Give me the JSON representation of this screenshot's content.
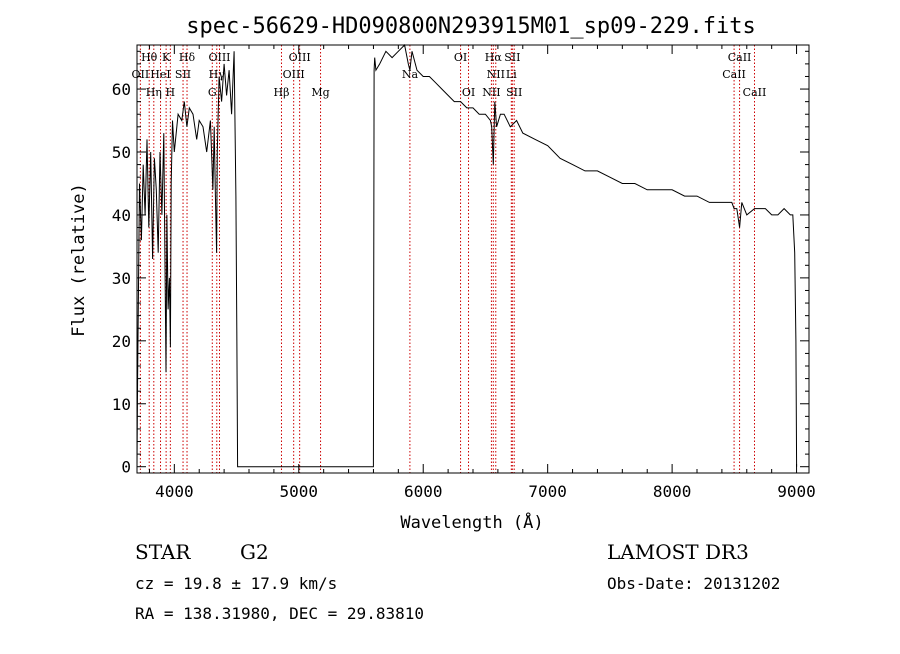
{
  "chart_data": {
    "type": "line",
    "title": "spec-56629-HD090800N293915M01_sp09-229.fits",
    "xlabel": "Wavelength (Å)",
    "ylabel": "Flux (relative)",
    "xlim": [
      3700,
      9100
    ],
    "ylim": [
      -1,
      67
    ],
    "xticks": [
      4000,
      5000,
      6000,
      7000,
      8000,
      9000
    ],
    "xtick_labels": [
      "4000",
      "5000",
      "6000",
      "7000",
      "8000",
      "9000"
    ],
    "yticks": [
      0,
      10,
      20,
      30,
      40,
      50,
      60
    ],
    "ytick_labels": [
      "0",
      "10",
      "20",
      "30",
      "40",
      "50",
      "60"
    ],
    "minor_xtick_step": 200,
    "minor_ytick_step": 2,
    "grid": false,
    "line_color": "#000000",
    "marker_color": "#cc0000",
    "series": [
      {
        "name": "spectrum",
        "x": [
          3700,
          3705,
          3720,
          3735,
          3750,
          3765,
          3780,
          3795,
          3810,
          3825,
          3840,
          3855,
          3870,
          3885,
          3900,
          3915,
          3925,
          3933,
          3940,
          3950,
          3960,
          3968,
          3975,
          3985,
          4000,
          4030,
          4060,
          4080,
          4101,
          4120,
          4150,
          4180,
          4200,
          4230,
          4260,
          4290,
          4310,
          4320,
          4330,
          4340,
          4345,
          4360,
          4380,
          4400,
          4420,
          4440,
          4460,
          4480,
          4495,
          4502,
          4508,
          4515,
          4520,
          5600,
          5605,
          5610,
          5620,
          5650,
          5700,
          5750,
          5800,
          5850,
          5880,
          5893,
          5910,
          5950,
          6000,
          6050,
          6100,
          6150,
          6200,
          6250,
          6300,
          6350,
          6400,
          6450,
          6500,
          6540,
          6550,
          6563,
          6575,
          6590,
          6620,
          6650,
          6700,
          6750,
          6800,
          6900,
          7000,
          7100,
          7200,
          7300,
          7400,
          7500,
          7600,
          7700,
          7800,
          7900,
          8000,
          8100,
          8200,
          8300,
          8400,
          8480,
          8498,
          8520,
          8542,
          8560,
          8600,
          8662,
          8700,
          8750,
          8800,
          8850,
          8900,
          8950,
          8970,
          8985,
          8995,
          9000
        ],
        "y": [
          0,
          14,
          45,
          36,
          48,
          40,
          52,
          38,
          50,
          33,
          49,
          44,
          34,
          50,
          40,
          53,
          32,
          15,
          40,
          25,
          30,
          19,
          45,
          55,
          50,
          56,
          55,
          58,
          54,
          57,
          56,
          52,
          55,
          54,
          50,
          55,
          44,
          54,
          43,
          34,
          50,
          62,
          58,
          64,
          59,
          63,
          56,
          66,
          43,
          22,
          0,
          0,
          0,
          0,
          63,
          65,
          63,
          64,
          66,
          65,
          66,
          67,
          64,
          63,
          66,
          63,
          62,
          62,
          61,
          60,
          59,
          58,
          58,
          57,
          57,
          56,
          56,
          55,
          54,
          48,
          58,
          54,
          56,
          56,
          54,
          55,
          53,
          52,
          51,
          49,
          48,
          47,
          47,
          46,
          45,
          45,
          44,
          44,
          44,
          43,
          43,
          42,
          42,
          42,
          41,
          41,
          38,
          42,
          40,
          41,
          41,
          41,
          40,
          40,
          41,
          40,
          40,
          34,
          20,
          0
        ]
      }
    ],
    "line_markers": [
      {
        "label": "Hθ",
        "wavelength": 3798,
        "row": 0,
        "dx": 0
      },
      {
        "label": "K",
        "wavelength": 3934,
        "row": 0,
        "dx": 0
      },
      {
        "label": "Hδ",
        "wavelength": 4102,
        "row": 0,
        "dx": 0
      },
      {
        "label": "OIII",
        "wavelength": 4363,
        "row": 0,
        "dx": 0
      },
      {
        "label": "OIII",
        "wavelength": 5007,
        "row": 0,
        "dx": 0
      },
      {
        "label": "OI",
        "wavelength": 6300,
        "row": 0,
        "dx": 0
      },
      {
        "label": "Hα",
        "wavelength": 6563,
        "row": 0,
        "dx": 0
      },
      {
        "label": "SII",
        "wavelength": 6716,
        "row": 0,
        "dx": 0
      },
      {
        "label": "CaII",
        "wavelength": 8542,
        "row": 0,
        "dx": 0
      },
      {
        "label": "OII",
        "wavelength": 3727,
        "row": 1,
        "dx": 0
      },
      {
        "label": "HeI",
        "wavelength": 3889,
        "row": 1,
        "dx": 0
      },
      {
        "label": "SII",
        "wavelength": 4070,
        "row": 1,
        "dx": 0
      },
      {
        "label": "Hγ",
        "wavelength": 4341,
        "row": 1,
        "dx": 0
      },
      {
        "label": "OIII",
        "wavelength": 4959,
        "row": 1,
        "dx": 0
      },
      {
        "label": "Na",
        "wavelength": 5893,
        "row": 1,
        "dx": 0
      },
      {
        "label": "NII",
        "wavelength": 6583,
        "row": 1,
        "dx": 0
      },
      {
        "label": "Li",
        "wavelength": 6708,
        "row": 1,
        "dx": 0
      },
      {
        "label": "CaII",
        "wavelength": 8498,
        "row": 1,
        "dx": 0
      },
      {
        "label": "Hη",
        "wavelength": 3835,
        "row": 2,
        "dx": 0
      },
      {
        "label": "H",
        "wavelength": 3968,
        "row": 2,
        "dx": 0
      },
      {
        "label": "G",
        "wavelength": 4305,
        "row": 2,
        "dx": 0
      },
      {
        "label": "Hβ",
        "wavelength": 4861,
        "row": 2,
        "dx": 0
      },
      {
        "label": "Mg",
        "wavelength": 5175,
        "row": 2,
        "dx": 0
      },
      {
        "label": "OI",
        "wavelength": 6364,
        "row": 2,
        "dx": 0
      },
      {
        "label": "NII",
        "wavelength": 6548,
        "row": 2,
        "dx": 0
      },
      {
        "label": "SII",
        "wavelength": 6731,
        "row": 2,
        "dx": 0
      },
      {
        "label": "CaII",
        "wavelength": 8662,
        "row": 2,
        "dx": 0
      }
    ]
  },
  "info": {
    "class_label": "STAR",
    "subclass_label": "G2",
    "survey": "LAMOST DR3",
    "cz_text": "cz = 19.8 ± 17.9 km/s",
    "obs_date_text": "Obs-Date: 20131202",
    "coords_text": "RA = 138.31980, DEC =  29.83810"
  }
}
